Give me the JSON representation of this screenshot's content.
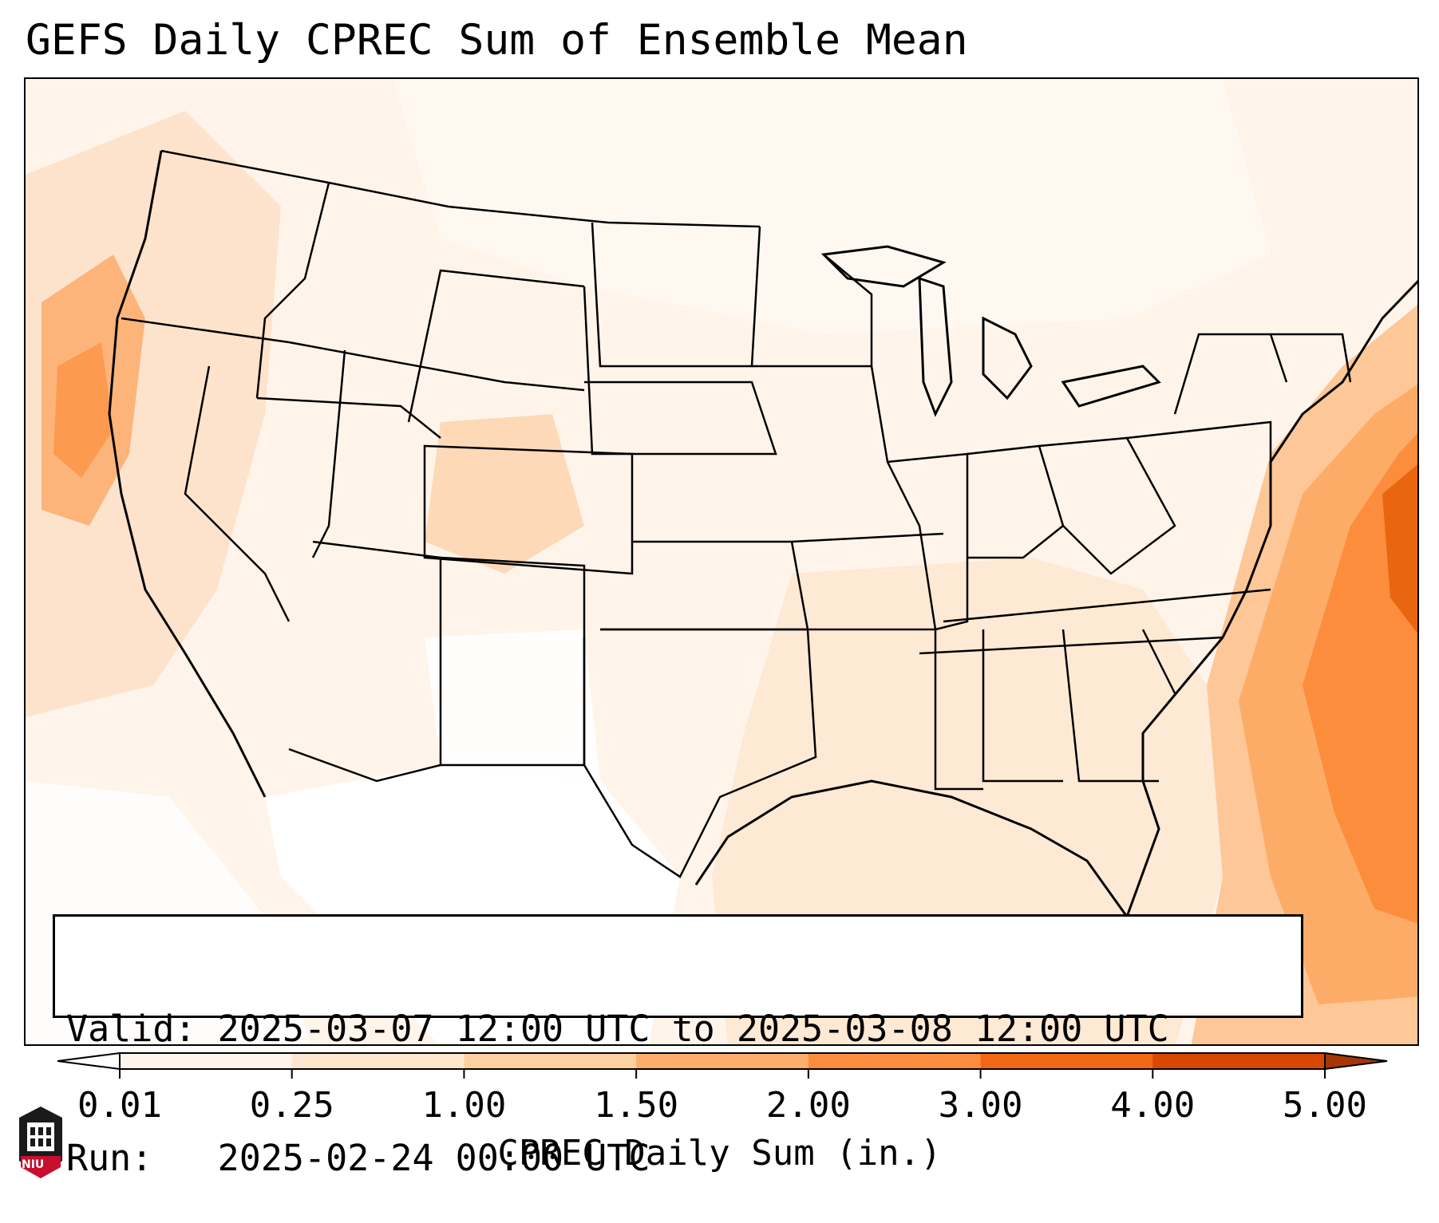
{
  "title": "GEFS Daily CPREC Sum of Ensemble Mean",
  "info": {
    "valid_line": "Valid: 2025-03-07 12:00 UTC to 2025-03-08 12:00 UTC",
    "run_line": "Run:   2025-02-24 00:00 UTC"
  },
  "colorbar": {
    "label": "CPREC Daily Sum (in.)",
    "ticks": [
      "0.01",
      "0.25",
      "1.00",
      "1.50",
      "2.00",
      "3.00",
      "4.00",
      "5.00"
    ],
    "colors": [
      "#fff5eb",
      "#fee6ce",
      "#fdd0a2",
      "#fdae6b",
      "#fd8d3c",
      "#f16913",
      "#d94801"
    ],
    "under_color": "#ffffff",
    "over_color": "#a63603"
  },
  "map": {
    "region": "Continental United States",
    "field": "CPREC daily sum, ensemble mean",
    "heaviest_area": "Atlantic Ocean east of the Carolinas and Mid-Atlantic coast",
    "secondary_area": "Pacific coast of northern California and Oregon"
  },
  "logo": {
    "text": "NIU",
    "color": "#c8102e"
  }
}
